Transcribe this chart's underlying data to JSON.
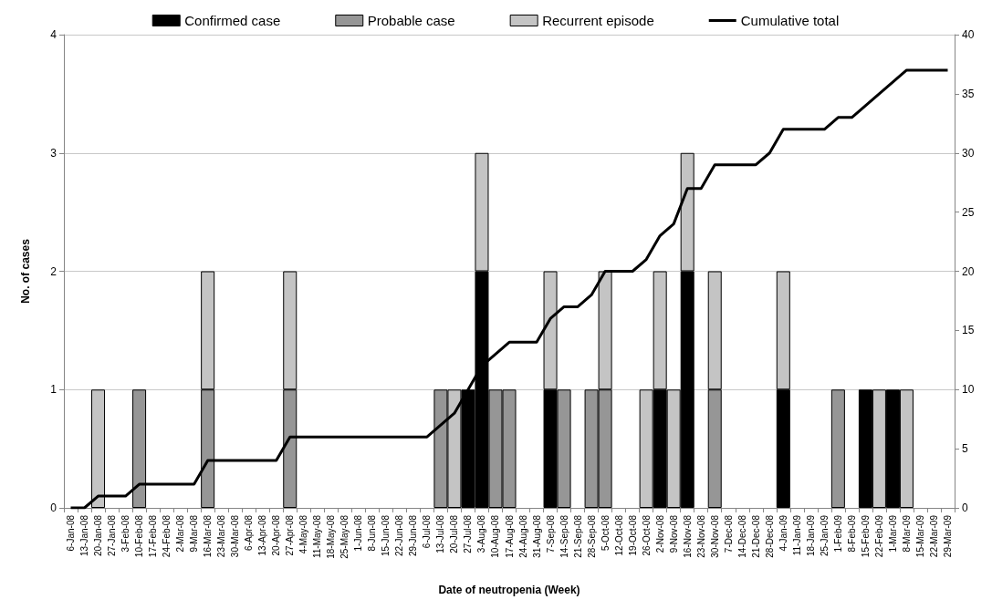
{
  "chart_data": {
    "type": "bar",
    "stacked": true,
    "xlabel": "Date of neutropenia (Week)",
    "ylabel": "No. of cases",
    "categories": [
      "6-Jan-08",
      "13-Jan-08",
      "20-Jan-08",
      "27-Jan-08",
      "3-Feb-08",
      "10-Feb-08",
      "17-Feb-08",
      "24-Feb-08",
      "2-Mar-08",
      "9-Mar-08",
      "16-Mar-08",
      "23-Mar-08",
      "30-Mar-08",
      "6-Apr-08",
      "13-Apr-08",
      "20-Apr-08",
      "27-Apr-08",
      "4-May-08",
      "11-May-08",
      "18-May-08",
      "25-May-08",
      "1-Jun-08",
      "8-Jun-08",
      "15-Jun-08",
      "22-Jun-08",
      "29-Jun-08",
      "6-Jul-08",
      "13-Jul-08",
      "20-Jul-08",
      "27-Jul-08",
      "3-Aug-08",
      "10-Aug-08",
      "17-Aug-08",
      "24-Aug-08",
      "31-Aug-08",
      "7-Sep-08",
      "14-Sep-08",
      "21-Sep-08",
      "28-Sep-08",
      "5-Oct-08",
      "12-Oct-08",
      "19-Oct-08",
      "26-Oct-08",
      "2-Nov-08",
      "9-Nov-08",
      "16-Nov-08",
      "23-Nov-08",
      "30-Nov-08",
      "7-Dec-08",
      "14-Dec-08",
      "21-Dec-08",
      "28-Dec-08",
      "4-Jan-09",
      "11-Jan-09",
      "18-Jan-09",
      "25-Jan-09",
      "1-Feb-09",
      "8-Feb-09",
      "15-Feb-09",
      "22-Feb-09",
      "1-Mar-09",
      "8-Mar-09",
      "15-Mar-09",
      "22-Mar-09",
      "29-Mar-09"
    ],
    "series": [
      {
        "name": "Confirmed case",
        "color": "#000000",
        "values": [
          0,
          0,
          0,
          0,
          0,
          0,
          0,
          0,
          0,
          0,
          0,
          0,
          0,
          0,
          0,
          0,
          0,
          0,
          0,
          0,
          0,
          0,
          0,
          0,
          0,
          0,
          0,
          0,
          0,
          1,
          2,
          0,
          0,
          0,
          0,
          1,
          0,
          0,
          0,
          0,
          0,
          0,
          0,
          1,
          0,
          2,
          0,
          0,
          0,
          0,
          0,
          0,
          1,
          0,
          0,
          0,
          0,
          0,
          1,
          0,
          1,
          0,
          0,
          0,
          0
        ]
      },
      {
        "name": "Probable case",
        "color": "#969696",
        "values": [
          0,
          0,
          0,
          0,
          0,
          1,
          0,
          0,
          0,
          0,
          1,
          0,
          0,
          0,
          0,
          0,
          1,
          0,
          0,
          0,
          0,
          0,
          0,
          0,
          0,
          0,
          0,
          1,
          0,
          0,
          0,
          1,
          1,
          0,
          0,
          0,
          1,
          0,
          1,
          1,
          0,
          0,
          0,
          0,
          0,
          0,
          0,
          1,
          0,
          0,
          0,
          0,
          0,
          0,
          0,
          0,
          1,
          0,
          0,
          0,
          0,
          0,
          0,
          0,
          0
        ]
      },
      {
        "name": "Recurrent episode",
        "color": "#c4c4c4",
        "values": [
          0,
          0,
          1,
          0,
          0,
          0,
          0,
          0,
          0,
          0,
          1,
          0,
          0,
          0,
          0,
          0,
          1,
          0,
          0,
          0,
          0,
          0,
          0,
          0,
          0,
          0,
          0,
          0,
          1,
          0,
          1,
          0,
          0,
          0,
          0,
          1,
          0,
          0,
          0,
          1,
          0,
          0,
          1,
          1,
          1,
          1,
          0,
          1,
          0,
          0,
          0,
          0,
          1,
          0,
          0,
          0,
          0,
          0,
          0,
          1,
          0,
          1,
          0,
          0,
          0
        ]
      },
      {
        "name": "Cumulative total",
        "type": "line",
        "axis": "y2",
        "color": "#000000",
        "values": [
          0,
          0,
          1,
          1,
          1,
          2,
          2,
          2,
          2,
          2,
          4,
          4,
          4,
          4,
          4,
          4,
          6,
          6,
          6,
          6,
          6,
          6,
          6,
          6,
          6,
          6,
          6,
          7,
          8,
          10,
          12,
          13,
          14,
          14,
          14,
          16,
          17,
          17,
          18,
          20,
          20,
          20,
          21,
          23,
          24,
          27,
          27,
          29,
          29,
          29,
          29,
          30,
          32,
          32,
          32,
          32,
          33,
          33,
          34,
          35,
          36,
          37,
          37,
          37,
          37
        ]
      }
    ],
    "ylim": [
      0,
      4
    ],
    "yticks": [
      0,
      1,
      2,
      3,
      4
    ],
    "y2lim": [
      0,
      40
    ],
    "y2ticks": [
      0,
      5,
      10,
      15,
      20,
      25,
      30,
      35,
      40
    ],
    "grid": "y",
    "legend": "top",
    "marker": "none",
    "line_style": "solid"
  }
}
